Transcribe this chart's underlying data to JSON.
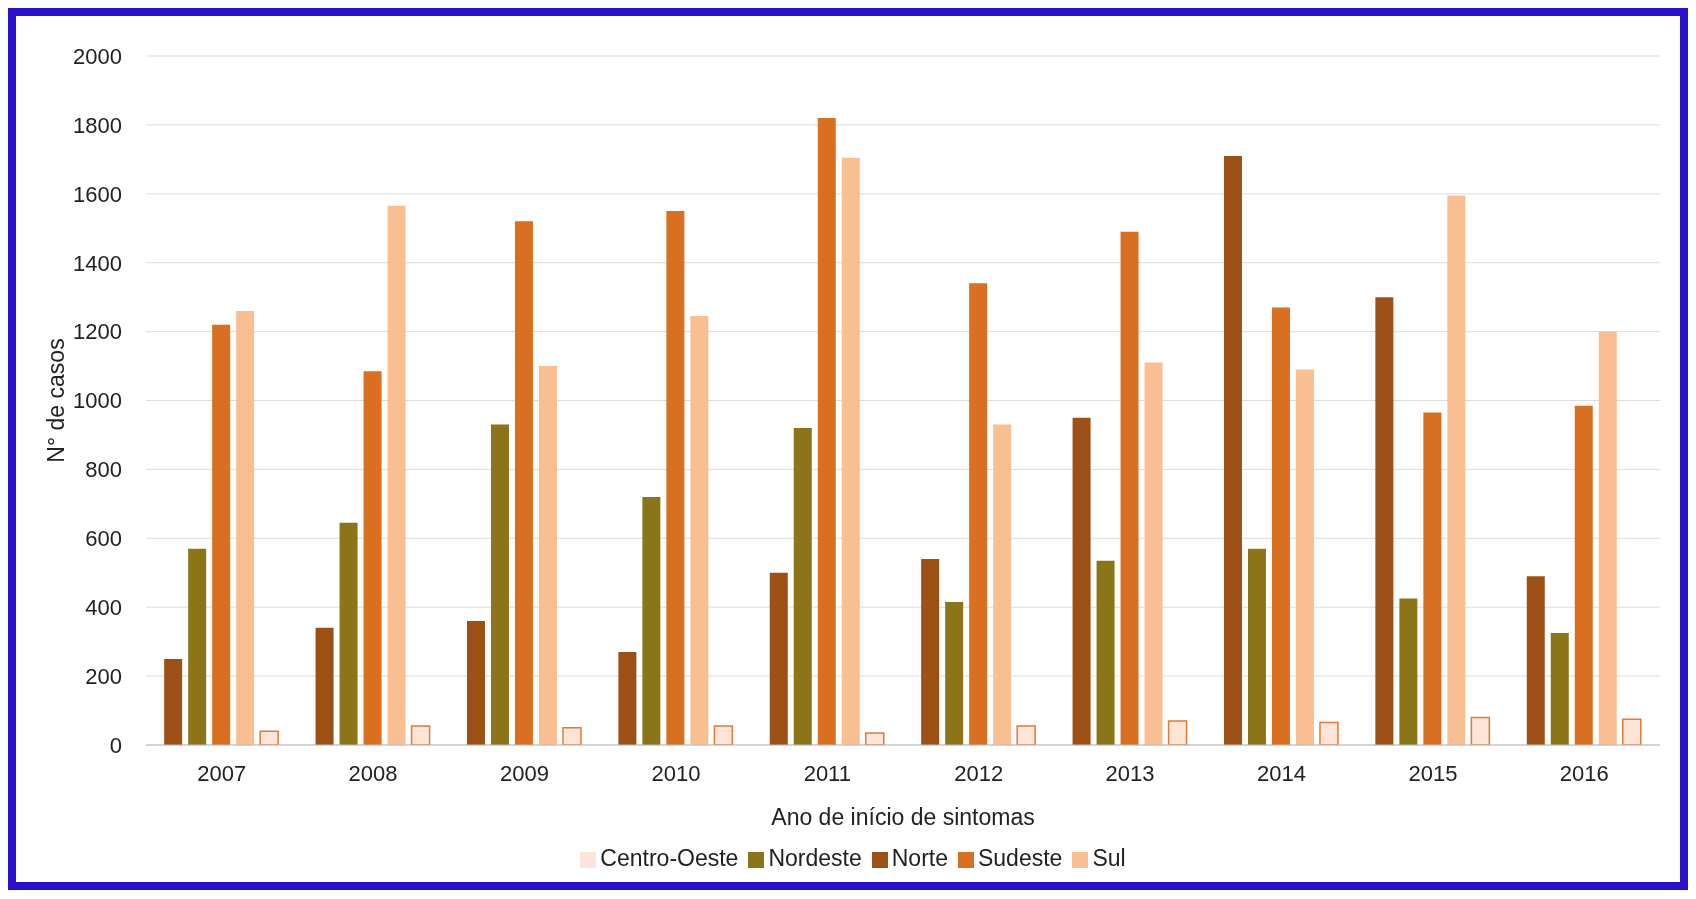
{
  "chart_data": {
    "type": "bar",
    "xlabel": "Ano de início de sintomas",
    "ylabel": "N° de casos",
    "categories": [
      "2007",
      "2008",
      "2009",
      "2010",
      "2011",
      "2012",
      "2013",
      "2014",
      "2015",
      "2016"
    ],
    "series": [
      {
        "name": "Norte",
        "color": "#9c5016",
        "values": [
          250,
          340,
          360,
          270,
          500,
          540,
          950,
          1710,
          1300,
          490
        ]
      },
      {
        "name": "Nordeste",
        "color": "#8c7418",
        "values": [
          570,
          645,
          930,
          720,
          920,
          415,
          535,
          570,
          425,
          325
        ]
      },
      {
        "name": "Sudeste",
        "color": "#d97021",
        "values": [
          1220,
          1085,
          1520,
          1550,
          1820,
          1340,
          1490,
          1270,
          965,
          985
        ]
      },
      {
        "name": "Sul",
        "color": "#f9bf93",
        "values": [
          1260,
          1565,
          1100,
          1245,
          1705,
          930,
          1110,
          1090,
          1595,
          1200
        ]
      },
      {
        "name": "Centro-Oeste",
        "color": "#fce4d6",
        "values": [
          40,
          55,
          50,
          55,
          35,
          55,
          70,
          65,
          80,
          75
        ]
      }
    ],
    "ylim": [
      0,
      2000
    ],
    "yticks": [
      0,
      200,
      400,
      600,
      800,
      1000,
      1200,
      1400,
      1600,
      1800,
      2000
    ],
    "grid": "y",
    "legend": "bottom"
  }
}
